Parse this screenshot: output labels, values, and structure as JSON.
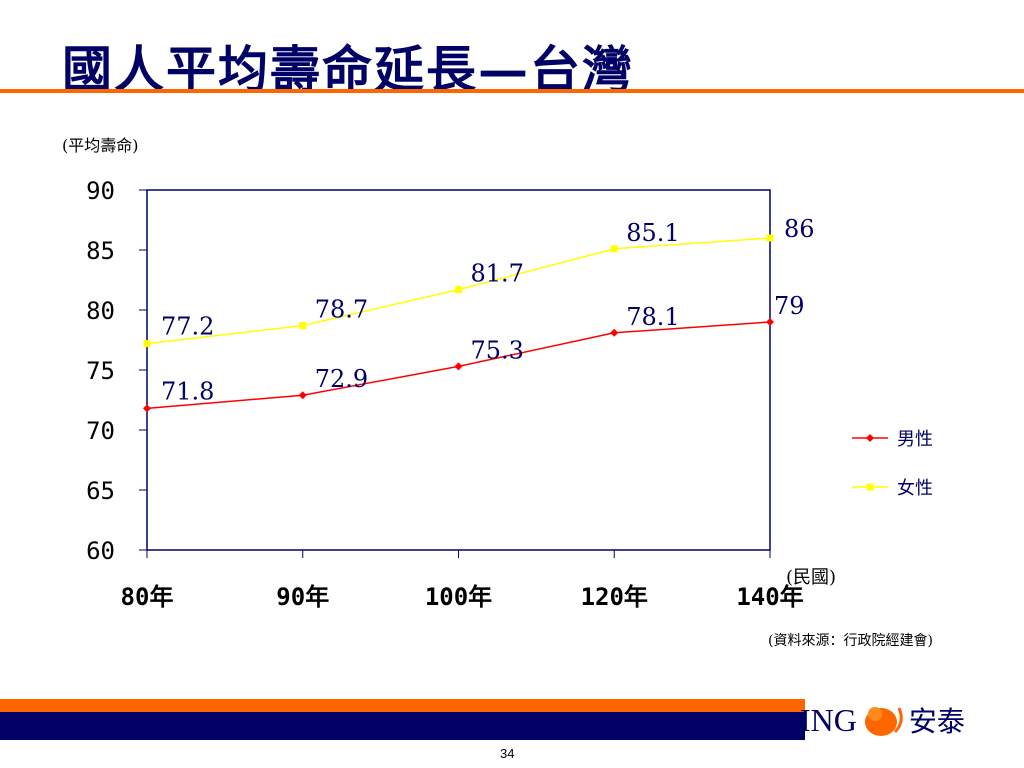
{
  "title": "國人平均壽命延長—台灣",
  "source": "(資料來源：行政院經建會)",
  "page_number": "34",
  "logo": {
    "brand": "ING",
    "cn": "安泰"
  },
  "colors": {
    "male": "#ff0000",
    "female": "#ffff00",
    "navy": "#000066",
    "orange": "#ff6600"
  },
  "chart_data": {
    "type": "line",
    "ylabel": "(平均壽命)",
    "xlabel": "(民國)",
    "categories": [
      "80年",
      "90年",
      "100年",
      "120年",
      "140年"
    ],
    "ylim": [
      60,
      90
    ],
    "yticks": [
      60,
      65,
      70,
      75,
      80,
      85,
      90
    ],
    "legend": "right",
    "series": [
      {
        "name": "男性",
        "values": [
          71.8,
          72.9,
          75.3,
          78.1,
          79
        ],
        "color": "#ff0000",
        "marker": "diamond"
      },
      {
        "name": "女性",
        "values": [
          77.2,
          78.7,
          81.7,
          85.1,
          86
        ],
        "color": "#ffff00",
        "marker": "square"
      }
    ]
  }
}
